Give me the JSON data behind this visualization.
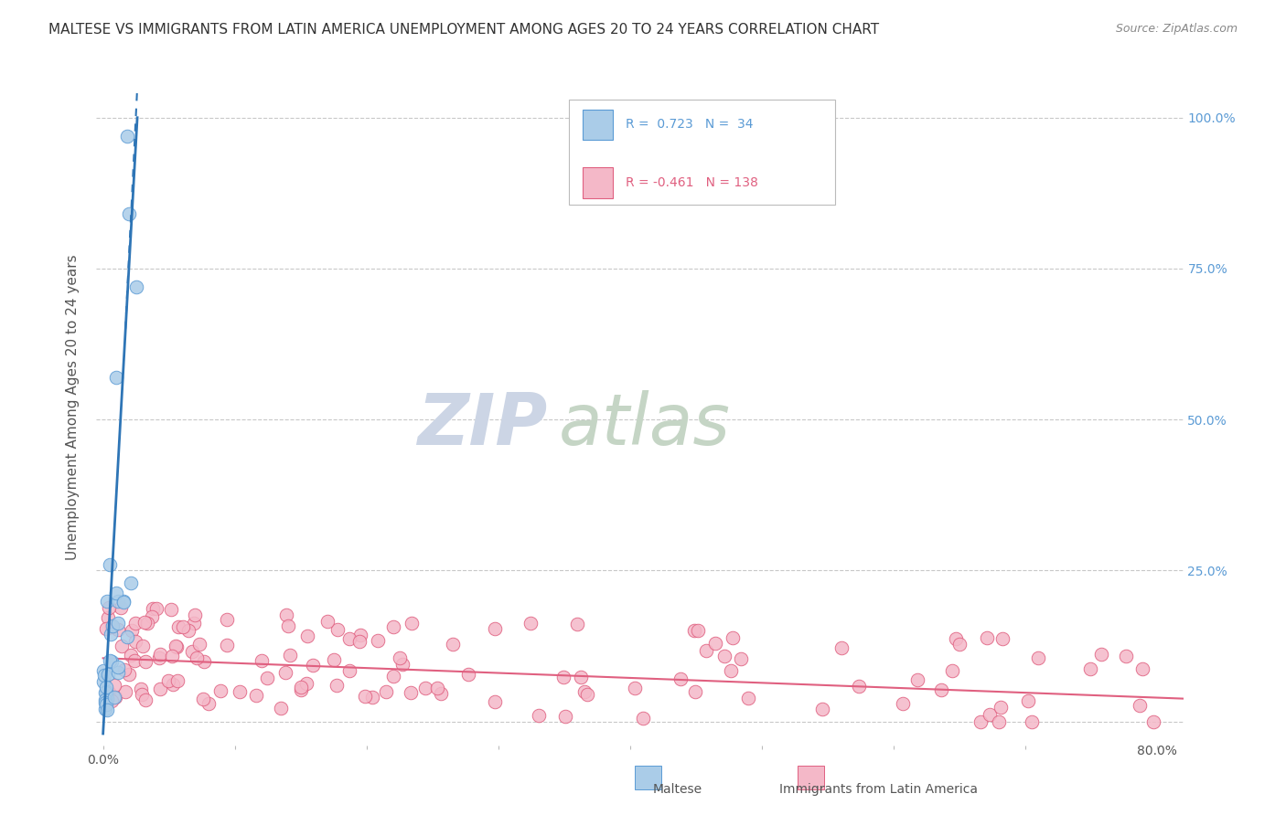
{
  "title": "MALTESE VS IMMIGRANTS FROM LATIN AMERICA UNEMPLOYMENT AMONG AGES 20 TO 24 YEARS CORRELATION CHART",
  "source": "Source: ZipAtlas.com",
  "ylabel": "Unemployment Among Ages 20 to 24 years",
  "xlim": [
    -0.005,
    0.82
  ],
  "ylim": [
    -0.04,
    1.08
  ],
  "yticks": [
    0.0,
    0.25,
    0.5,
    0.75,
    1.0
  ],
  "right_ytick_color": "#5b9bd5",
  "grid_color": "#c8c8c8",
  "background_color": "#ffffff",
  "blue_color": "#aacce8",
  "blue_edge_color": "#5b9bd5",
  "blue_trend_color": "#2e75b6",
  "pink_color": "#f4b8c8",
  "pink_edge_color": "#e06080",
  "pink_trend_color": "#e06080",
  "legend_blue_label": "Maltese",
  "legend_pink_label": "Immigrants from Latin America",
  "watermark_zip_color": "#ccd5e5",
  "watermark_atlas_color": "#c5d5c5"
}
